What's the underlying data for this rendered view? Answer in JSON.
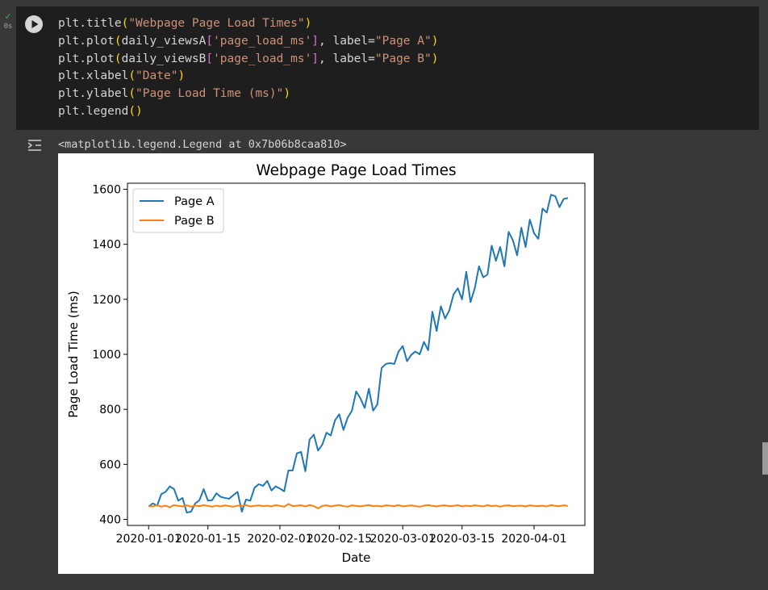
{
  "cell": {
    "exec_time": "0s",
    "code_lines": [
      [
        {
          "t": "plt.title"
        },
        {
          "t": "(",
          "c": "p"
        },
        {
          "t": "\"Webpage Page Load Times\"",
          "c": "s"
        },
        {
          "t": ")",
          "c": "p"
        }
      ],
      [
        {
          "t": "plt.plot"
        },
        {
          "t": "(",
          "c": "p"
        },
        {
          "t": "daily_viewsA"
        },
        {
          "t": "[",
          "c": "pk"
        },
        {
          "t": "'page_load_ms'",
          "c": "s"
        },
        {
          "t": "]",
          "c": "pk"
        },
        {
          "t": ", label="
        },
        {
          "t": "\"Page A\"",
          "c": "s"
        },
        {
          "t": ")",
          "c": "p"
        }
      ],
      [
        {
          "t": "plt.plot"
        },
        {
          "t": "(",
          "c": "p"
        },
        {
          "t": "daily_viewsB"
        },
        {
          "t": "[",
          "c": "pk"
        },
        {
          "t": "'page_load_ms'",
          "c": "s"
        },
        {
          "t": "]",
          "c": "pk"
        },
        {
          "t": ", label="
        },
        {
          "t": "\"Page B\"",
          "c": "s"
        },
        {
          "t": ")",
          "c": "p"
        }
      ],
      [
        {
          "t": "plt.xlabel"
        },
        {
          "t": "(",
          "c": "p"
        },
        {
          "t": "\"Date\"",
          "c": "s"
        },
        {
          "t": ")",
          "c": "p"
        }
      ],
      [
        {
          "t": "plt.ylabel"
        },
        {
          "t": "(",
          "c": "p"
        },
        {
          "t": "\"Page Load Time (ms)\"",
          "c": "s"
        },
        {
          "t": ")",
          "c": "p"
        }
      ],
      [
        {
          "t": "plt.legend"
        },
        {
          "t": "()",
          "c": "p"
        }
      ]
    ]
  },
  "output": {
    "text": "<matplotlib.legend.Legend at 0x7b06b8caa810>"
  },
  "chart_data": {
    "type": "line",
    "title": "Webpage Page Load Times",
    "xlabel": "Date",
    "ylabel": "Page Load Time (ms)",
    "x_start": "2020-01-01",
    "x_ticks": [
      "2020-01-01",
      "2020-01-15",
      "2020-02-01",
      "2020-02-15",
      "2020-03-01",
      "2020-03-15",
      "2020-04-01"
    ],
    "y_ticks": [
      400,
      600,
      800,
      1000,
      1200,
      1400,
      1600
    ],
    "xlim": [
      "2019-12-27",
      "2020-04-13"
    ],
    "ylim": [
      378,
      1622
    ],
    "legend": "upper-left",
    "grid": false,
    "series": [
      {
        "name": "Page A",
        "color": "#1f77b4",
        "values": [
          447,
          458,
          450,
          492,
          500,
          520,
          510,
          468,
          478,
          425,
          428,
          458,
          470,
          510,
          468,
          470,
          495,
          482,
          478,
          475,
          488,
          500,
          428,
          472,
          468,
          515,
          528,
          522,
          540,
          505,
          520,
          512,
          502,
          578,
          578,
          640,
          645,
          575,
          690,
          708,
          650,
          672,
          715,
          705,
          760,
          782,
          725,
          770,
          795,
          865,
          840,
          805,
          875,
          795,
          818,
          950,
          965,
          968,
          965,
          1010,
          1030,
          975,
          998,
          1010,
          1000,
          1045,
          1015,
          1155,
          1085,
          1175,
          1130,
          1160,
          1218,
          1240,
          1200,
          1300,
          1190,
          1240,
          1320,
          1280,
          1290,
          1395,
          1340,
          1390,
          1320,
          1445,
          1415,
          1360,
          1460,
          1390,
          1490,
          1440,
          1420,
          1530,
          1515,
          1580,
          1575,
          1535,
          1565,
          1568
        ]
      },
      {
        "name": "Page B",
        "color": "#ff7f0e",
        "values": [
          448,
          447,
          452,
          446,
          450,
          444,
          452,
          449,
          447,
          451,
          446,
          450,
          448,
          452,
          449,
          446,
          450,
          447,
          451,
          448,
          446,
          450,
          449,
          452,
          447,
          449,
          451,
          448,
          450,
          447,
          452,
          449,
          446,
          456,
          448,
          450,
          451,
          447,
          452,
          448,
          440,
          449,
          451,
          447,
          450,
          452,
          448,
          446,
          451,
          449,
          447,
          450,
          452,
          448,
          449,
          447,
          451,
          450,
          448,
          452,
          447,
          449,
          451,
          448,
          446,
          450,
          452,
          449,
          447,
          450,
          451,
          448,
          449,
          452,
          447,
          450,
          448,
          451,
          449,
          447,
          452,
          448,
          450,
          446,
          450,
          451,
          448,
          449,
          450,
          447,
          451,
          449,
          448,
          450,
          447,
          452,
          449,
          448,
          451,
          449
        ]
      }
    ]
  }
}
